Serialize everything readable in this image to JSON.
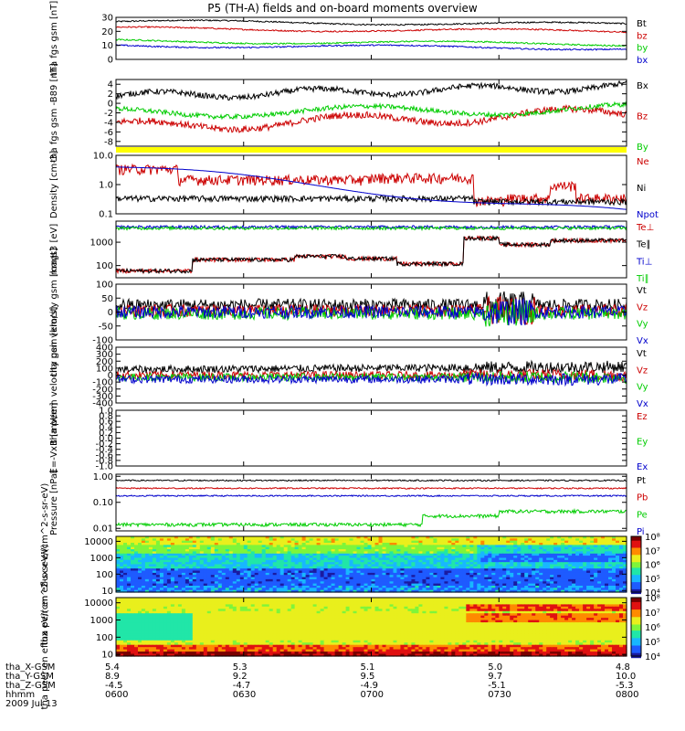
{
  "title": "P5 (TH-A) fields and on-board moments overview",
  "footer": {
    "row_labels": [
      "tha_X-GSM",
      "tha_Y-GSM",
      "tha_Z-GSM",
      "hhmm",
      "2009 Jul 13"
    ],
    "columns": [
      {
        "x": "5.4",
        "y": "8.9",
        "z": "-4.5",
        "t": "0600"
      },
      {
        "x": "5.3",
        "y": "9.2",
        "z": "-4.7",
        "t": "0630"
      },
      {
        "x": "5.1",
        "y": "9.5",
        "z": "-4.9",
        "t": "0700"
      },
      {
        "x": "5.0",
        "y": "9.7",
        "z": "-5.1",
        "t": "0730"
      },
      {
        "x": "4.8",
        "y": "10.0",
        "z": "-5.3",
        "t": "0800"
      }
    ]
  },
  "chart_data": [
    {
      "type": "line",
      "id": "fgs",
      "ylabel": "tha fgs gsm [nT]",
      "ylim": [
        0,
        30
      ],
      "yticks": [
        {
          "v": 0,
          "label": "0"
        },
        {
          "v": 10,
          "label": "10"
        },
        {
          "v": 20,
          "label": "20"
        },
        {
          "v": 30,
          "label": "30"
        }
      ],
      "series": [
        {
          "name": "Bt",
          "color": "#000000",
          "approx_level": 27
        },
        {
          "name": "bz",
          "color": "#cc0000",
          "approx_level": 22
        },
        {
          "name": "by",
          "color": "#00cc00",
          "approx_level": 13
        },
        {
          "name": "bx",
          "color": "#0000cc",
          "approx_level": 10
        }
      ]
    },
    {
      "type": "line",
      "id": "fgs_dsl",
      "ylabel": "tha fgs gsm -B89 [nT]",
      "ylim": [
        -9,
        5
      ],
      "yticks": [
        {
          "v": 4,
          "label": "4"
        },
        {
          "v": 2,
          "label": "2"
        },
        {
          "v": 0,
          "label": "0"
        },
        {
          "v": -2,
          "label": "-2"
        },
        {
          "v": -4,
          "label": "-4"
        },
        {
          "v": -6,
          "label": "-6"
        },
        {
          "v": -8,
          "label": "-8"
        }
      ],
      "series": [
        {
          "name": "Bx",
          "color": "#000000",
          "approx_level": 2
        },
        {
          "name": "Bz",
          "color": "#cc0000",
          "approx_level": -4
        },
        {
          "name": "By",
          "color": "#00cc00",
          "approx_level": -1.5
        }
      ]
    },
    {
      "type": "line",
      "id": "density",
      "ylabel": "Density [cm-3]",
      "log": true,
      "ylim": [
        0.1,
        10
      ],
      "yticks": [
        {
          "v": 0.1,
          "label": "0.1"
        },
        {
          "v": 1,
          "label": "1.0"
        },
        {
          "v": 10,
          "label": "10.0"
        }
      ],
      "series": [
        {
          "name": "Ne",
          "color": "#cc0000",
          "approx_level": 1.5
        },
        {
          "name": "Ni",
          "color": "#000000",
          "approx_level": 0.3
        },
        {
          "name": "Npot",
          "color": "#0000cc",
          "approx_level": 1.0
        }
      ]
    },
    {
      "type": "line",
      "id": "temp",
      "ylabel": "magt3 [eV]",
      "log": true,
      "ylim": [
        30,
        8000
      ],
      "yticks": [
        {
          "v": 100,
          "label": "100"
        },
        {
          "v": 1000,
          "label": "1000"
        }
      ],
      "series": [
        {
          "name": "Te⊥",
          "color": "#cc0000",
          "approx_level": 200
        },
        {
          "name": "Te∥",
          "color": "#000000",
          "approx_level": 200
        },
        {
          "name": "Ti⊥",
          "color": "#0000cc",
          "approx_level": 4500
        },
        {
          "name": "Ti∥",
          "color": "#00cc00",
          "approx_level": 4000
        }
      ]
    },
    {
      "type": "line",
      "id": "vel_peir",
      "ylabel": "tha peir velocity gsm [km/s]",
      "ylim": [
        -100,
        100
      ],
      "yticks": [
        {
          "v": -100,
          "label": "-100"
        },
        {
          "v": -50,
          "label": "-50"
        },
        {
          "v": 0,
          "label": "0"
        },
        {
          "v": 50,
          "label": "50"
        },
        {
          "v": 100,
          "label": "100"
        }
      ],
      "series": [
        {
          "name": "Vt",
          "color": "#000000",
          "approx_level": 25
        },
        {
          "name": "Vz",
          "color": "#cc0000",
          "approx_level": 5
        },
        {
          "name": "Vy",
          "color": "#00cc00",
          "approx_level": -5
        },
        {
          "name": "Vx",
          "color": "#0000cc",
          "approx_level": 0
        }
      ]
    },
    {
      "type": "line",
      "id": "vel_peem",
      "ylabel": "tha peem velocity gsm [km/s]",
      "ylim": [
        -400,
        400
      ],
      "yticks": [
        {
          "v": -400,
          "label": "-400"
        },
        {
          "v": -300,
          "label": "-300"
        },
        {
          "v": -200,
          "label": "-200"
        },
        {
          "v": -100,
          "label": "-100"
        },
        {
          "v": 0,
          "label": "0"
        },
        {
          "v": 100,
          "label": "100"
        },
        {
          "v": 200,
          "label": "200"
        },
        {
          "v": 300,
          "label": "300"
        },
        {
          "v": 400,
          "label": "400"
        }
      ],
      "series": [
        {
          "name": "Vt",
          "color": "#000000",
          "approx_level": 80
        },
        {
          "name": "Vz",
          "color": "#cc0000",
          "approx_level": 0
        },
        {
          "name": "Vy",
          "color": "#00cc00",
          "approx_level": -30
        },
        {
          "name": "Vx",
          "color": "#0000cc",
          "approx_level": -60
        }
      ]
    },
    {
      "type": "line",
      "id": "efield",
      "ylabel": "E=-VxB [mV/m]",
      "ylim": [
        -1,
        1
      ],
      "empty": true,
      "yticks": [
        {
          "v": -1,
          "label": "-1.0"
        },
        {
          "v": -0.8,
          "label": "-0.8"
        },
        {
          "v": -0.6,
          "label": "-0.6"
        },
        {
          "v": -0.4,
          "label": "-0.4"
        },
        {
          "v": -0.2,
          "label": "-0.2"
        },
        {
          "v": 0,
          "label": "0.0"
        },
        {
          "v": 0.2,
          "label": "0.2"
        },
        {
          "v": 0.4,
          "label": "0.4"
        },
        {
          "v": 0.6,
          "label": "0.6"
        },
        {
          "v": 0.8,
          "label": "0.8"
        },
        {
          "v": 1,
          "label": "1.0"
        }
      ],
      "series": [
        {
          "name": "Ez",
          "color": "#cc0000"
        },
        {
          "name": "Ey",
          "color": "#00cc00"
        },
        {
          "name": "Ex",
          "color": "#0000cc"
        }
      ]
    },
    {
      "type": "line",
      "id": "pressure",
      "ylabel": "Pressure [nPa]",
      "log": true,
      "ylim": [
        0.008,
        1.2
      ],
      "yticks": [
        {
          "v": 0.01,
          "label": "0.01"
        },
        {
          "v": 0.1,
          "label": "0.10"
        },
        {
          "v": 1,
          "label": "1.00"
        }
      ],
      "series": [
        {
          "name": "Pt",
          "color": "#000000",
          "approx_level": 0.7
        },
        {
          "name": "Pb",
          "color": "#cc0000",
          "approx_level": 0.35
        },
        {
          "name": "Pe",
          "color": "#00cc00",
          "approx_level": 0.015
        },
        {
          "name": "Pi",
          "color": "#0000cc",
          "approx_level": 0.18
        }
      ]
    },
    {
      "type": "heatmap",
      "id": "peir_spec",
      "ylabel": "tha peir en eflux eV/(cm^2-s-sr-eV)",
      "log": true,
      "ylim": [
        8,
        20000
      ],
      "yticks": [
        {
          "v": 10,
          "label": "10"
        },
        {
          "v": 100,
          "label": "100"
        },
        {
          "v": 1000,
          "label": "1000"
        },
        {
          "v": 10000,
          "label": "10000"
        }
      ],
      "colorbar": {
        "range": [
          10000,
          100000000
        ],
        "labels": [
          "10⁴",
          "10⁵",
          "10⁶",
          "10⁷",
          "10⁸"
        ]
      }
    },
    {
      "type": "heatmap",
      "id": "peer_spec",
      "ylabel": "tha peer en eflux eV/(cm^2-s-sr-eV)",
      "log": true,
      "ylim": [
        8,
        20000
      ],
      "yticks": [
        {
          "v": 10,
          "label": "10"
        },
        {
          "v": 100,
          "label": "100"
        },
        {
          "v": 1000,
          "label": "1000"
        },
        {
          "v": 10000,
          "label": "10000"
        }
      ],
      "colorbar": {
        "range": [
          10000,
          100000000
        ],
        "labels": [
          "10⁴",
          "10⁵",
          "10⁶",
          "10⁷",
          "10⁸"
        ]
      }
    }
  ]
}
